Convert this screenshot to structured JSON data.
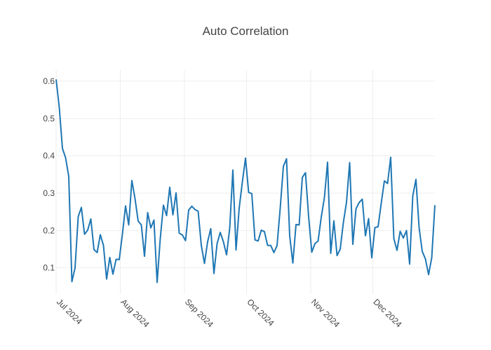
{
  "chart_data": {
    "type": "line",
    "title": "Auto Correlation",
    "xlabel": "",
    "ylabel": "",
    "grid": true,
    "legend": "none",
    "color": "#1f77b4",
    "x_start": "2024-07-01",
    "x_end": "2024-12-31",
    "xlim": [
      "2024-07-01",
      "2024-12-31"
    ],
    "ylim": [
      0.03,
      0.63
    ],
    "x_ticks": [
      {
        "date": "2024-07-01",
        "label": "Jul 2024"
      },
      {
        "date": "2024-08-01",
        "label": "Aug 2024"
      },
      {
        "date": "2024-09-01",
        "label": "Sep 2024"
      },
      {
        "date": "2024-10-01",
        "label": "Oct 2024"
      },
      {
        "date": "2024-11-01",
        "label": "Nov 2024"
      },
      {
        "date": "2024-12-01",
        "label": "Dec 2024"
      }
    ],
    "y_ticks": [
      {
        "value": 0.1,
        "label": "0.1"
      },
      {
        "value": 0.2,
        "label": "0.2"
      },
      {
        "value": 0.3,
        "label": "0.3"
      },
      {
        "value": 0.4,
        "label": "0.4"
      },
      {
        "value": 0.5,
        "label": "0.5"
      },
      {
        "value": 0.6,
        "label": "0.6"
      }
    ],
    "series": [
      {
        "values": [
          0.605,
          0.53,
          0.42,
          0.395,
          0.345,
          0.063,
          0.1,
          0.237,
          0.262,
          0.19,
          0.201,
          0.231,
          0.149,
          0.141,
          0.189,
          0.16,
          0.07,
          0.128,
          0.083,
          0.123,
          0.122,
          0.19,
          0.266,
          0.215,
          0.334,
          0.285,
          0.225,
          0.215,
          0.131,
          0.248,
          0.207,
          0.228,
          0.061,
          0.179,
          0.268,
          0.24,
          0.316,
          0.242,
          0.301,
          0.193,
          0.188,
          0.173,
          0.255,
          0.265,
          0.256,
          0.252,
          0.16,
          0.112,
          0.17,
          0.205,
          0.085,
          0.165,
          0.195,
          0.17,
          0.135,
          0.206,
          0.362,
          0.148,
          0.26,
          0.33,
          0.394,
          0.302,
          0.299,
          0.175,
          0.172,
          0.201,
          0.197,
          0.16,
          0.16,
          0.141,
          0.16,
          0.26,
          0.372,
          0.392,
          0.186,
          0.113,
          0.216,
          0.215,
          0.342,
          0.355,
          0.237,
          0.142,
          0.165,
          0.172,
          0.236,
          0.288,
          0.383,
          0.139,
          0.226,
          0.133,
          0.15,
          0.221,
          0.276,
          0.382,
          0.163,
          0.258,
          0.275,
          0.284,
          0.186,
          0.232,
          0.127,
          0.208,
          0.21,
          0.273,
          0.333,
          0.326,
          0.396,
          0.178,
          0.147,
          0.198,
          0.18,
          0.2,
          0.11,
          0.293,
          0.337,
          0.208,
          0.144,
          0.124,
          0.082,
          0.127,
          0.268
        ]
      }
    ]
  }
}
